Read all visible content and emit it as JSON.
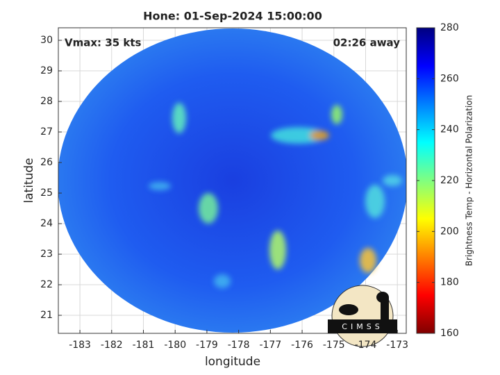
{
  "chart_data": {
    "type": "image",
    "title": "Hone: 01-Sep-2024 15:00:00",
    "xlabel": "longitude",
    "ylabel": "latitude",
    "xlim": [
      -183.68,
      -172.72
    ],
    "ylim": [
      20.41,
      30.41
    ],
    "xticks": [
      -183,
      -182,
      -181,
      -180,
      -179,
      -178,
      -177,
      -176,
      -175,
      -174,
      -173
    ],
    "yticks": [
      21,
      22,
      23,
      24,
      25,
      26,
      27,
      28,
      29,
      30
    ],
    "grid": true,
    "annotations": [
      "Vmax: 35 kts",
      "02:26 away"
    ],
    "logo": "CIMSS",
    "colorbar": {
      "label": "Brightness Temp - Horizontal Polarization",
      "lim": [
        160,
        280
      ],
      "ticks": [
        160,
        180,
        200,
        220,
        240,
        260,
        280
      ],
      "colormap": [
        "#800000",
        "#ff0000",
        "#ff8000",
        "#ffff00",
        "#80ff80",
        "#00ffff",
        "#0080ff",
        "#0000ff",
        "#000080"
      ]
    }
  }
}
